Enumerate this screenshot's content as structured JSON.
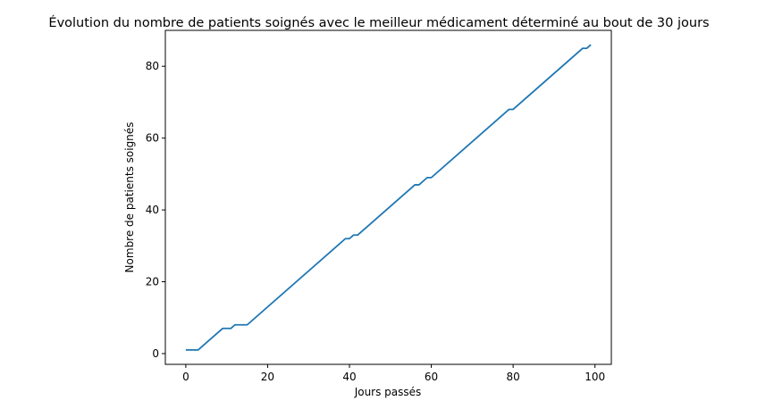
{
  "chart_data": {
    "type": "line",
    "title": "Évolution du nombre de patients soignés avec le meilleur médicament déterminé au bout de 30 jours",
    "xlabel": "Jours passés",
    "ylabel": "Nombre de patients soignés",
    "xlim": [
      -5,
      104
    ],
    "ylim": [
      -3,
      90
    ],
    "xticks": [
      0,
      20,
      40,
      60,
      80,
      100
    ],
    "yticks": [
      0,
      20,
      40,
      60,
      80
    ],
    "grid": false,
    "series": [
      {
        "color": "#1f77b4",
        "x": [
          0,
          3,
          9,
          11,
          12,
          15,
          39,
          40,
          41,
          42,
          56,
          57,
          59,
          60,
          79,
          80,
          97,
          98,
          99
        ],
        "y": [
          1,
          1,
          7,
          7,
          8,
          8,
          32,
          32,
          33,
          33,
          47,
          47,
          49,
          49,
          68,
          68,
          85,
          85,
          86
        ]
      }
    ]
  }
}
